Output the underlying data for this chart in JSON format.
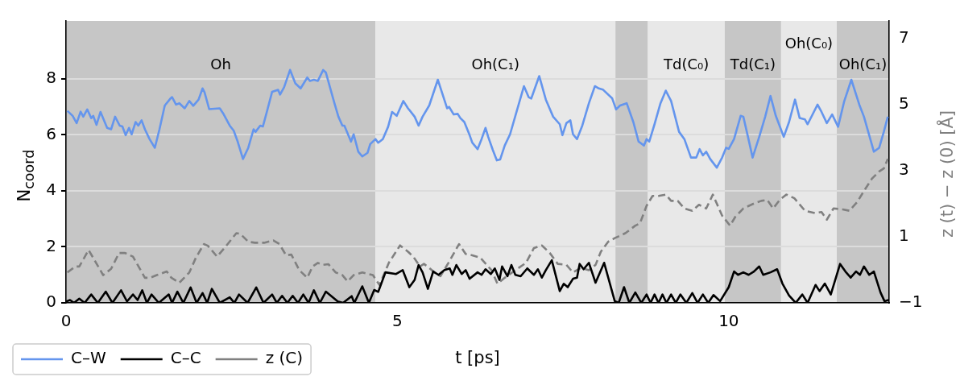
{
  "chart_data": {
    "type": "line",
    "xlabel": "t [ps]",
    "ylabel": "N$_{coord}$",
    "y2label": "z (t) − z (0) [Å]",
    "xlim": [
      0,
      12.42
    ],
    "xticks": [
      0,
      5,
      10
    ],
    "ylim": [
      0,
      10.07
    ],
    "yticks": [
      0,
      2,
      4,
      6,
      8
    ],
    "y2lim": [
      -1,
      7.54
    ],
    "y2ticks": [
      -1,
      1,
      3,
      5,
      7
    ],
    "grid": "y",
    "legend": "bottom left",
    "bands": [
      {
        "axis": "x",
        "from": 0,
        "to": 4.67,
        "label": "Oh",
        "color": "#c6c6c6"
      },
      {
        "axis": "x",
        "from": 4.67,
        "to": 8.29,
        "label": "Oh(C₁)",
        "color": "#e8e8e8"
      },
      {
        "axis": "x",
        "from": 8.29,
        "to": 8.78,
        "label": null,
        "color": "#c6c6c6"
      },
      {
        "axis": "x",
        "from": 8.78,
        "to": 9.94,
        "label": "Td(C₀)",
        "color": "#e8e8e8"
      },
      {
        "axis": "x",
        "from": 9.94,
        "to": 10.79,
        "label": "Td(C₁)",
        "color": "#c6c6c6"
      },
      {
        "axis": "x",
        "from": 10.79,
        "to": 11.63,
        "label": "Oh(C₀)",
        "color": "#e8e8e8"
      },
      {
        "axis": "x",
        "from": 11.63,
        "to": 12.42,
        "label": "Oh(C₁)",
        "color": "#c6c6c6"
      }
    ],
    "series": [
      {
        "name": "C–W",
        "color": "#6495ed",
        "line_style": "solid",
        "x": [
          0.02,
          0.1,
          0.16,
          0.22,
          0.26,
          0.32,
          0.38,
          0.41,
          0.46,
          0.52,
          0.62,
          0.68,
          0.74,
          0.81,
          0.85,
          0.9,
          0.95,
          0.99,
          1.05,
          1.09,
          1.14,
          1.19,
          1.26,
          1.34,
          1.41,
          1.49,
          1.58,
          1.6,
          1.66,
          1.71,
          1.79,
          1.86,
          1.92,
          2.0,
          2.06,
          2.09,
          2.16,
          2.32,
          2.37,
          2.47,
          2.53,
          2.59,
          2.67,
          2.75,
          2.83,
          2.86,
          2.93,
          2.97,
          3.03,
          3.11,
          3.2,
          3.23,
          3.29,
          3.38,
          3.46,
          3.54,
          3.64,
          3.68,
          3.74,
          3.8,
          3.88,
          3.92,
          4.05,
          4.11,
          4.17,
          4.2,
          4.3,
          4.34,
          4.41,
          4.47,
          4.55,
          4.59,
          4.67,
          4.71,
          4.78,
          4.86,
          4.92,
          4.99,
          5.09,
          5.16,
          5.26,
          5.32,
          5.38,
          5.48,
          5.61,
          5.75,
          5.78,
          5.85,
          5.91,
          5.95,
          6.01,
          6.09,
          6.13,
          6.21,
          6.27,
          6.33,
          6.37,
          6.44,
          6.5,
          6.55,
          6.62,
          6.7,
          6.78,
          6.91,
          6.98,
          7.02,
          7.14,
          7.24,
          7.35,
          7.45,
          7.49,
          7.55,
          7.61,
          7.65,
          7.71,
          7.79,
          7.89,
          7.98,
          8.04,
          8.1,
          8.24,
          8.3,
          8.36,
          8.46,
          8.56,
          8.64,
          8.72,
          8.76,
          8.8,
          8.88,
          8.97,
          9.05,
          9.13,
          9.25,
          9.33,
          9.43,
          9.51,
          9.56,
          9.61,
          9.66,
          9.72,
          9.82,
          9.9,
          9.96,
          10.0,
          10.08,
          10.18,
          10.22,
          10.29,
          10.36,
          10.46,
          10.55,
          10.63,
          10.71,
          10.83,
          10.91,
          11.0,
          11.07,
          11.15,
          11.19,
          11.34,
          11.4,
          11.48,
          11.56,
          11.65,
          11.74,
          11.85,
          11.97,
          12.04,
          12.19,
          12.27,
          12.34,
          12.4
        ],
        "values": [
          6.86,
          6.68,
          6.42,
          6.83,
          6.65,
          6.91,
          6.6,
          6.68,
          6.36,
          6.82,
          6.25,
          6.2,
          6.65,
          6.33,
          6.3,
          5.99,
          6.25,
          6.02,
          6.46,
          6.33,
          6.52,
          6.2,
          5.85,
          5.54,
          6.2,
          7.05,
          7.31,
          7.35,
          7.08,
          7.13,
          6.95,
          7.21,
          7.04,
          7.26,
          7.66,
          7.52,
          6.92,
          6.95,
          6.77,
          6.33,
          6.15,
          5.76,
          5.14,
          5.54,
          6.2,
          6.11,
          6.33,
          6.3,
          6.82,
          7.54,
          7.61,
          7.44,
          7.7,
          8.32,
          7.84,
          7.66,
          8.05,
          7.93,
          7.97,
          7.93,
          8.32,
          8.23,
          7.13,
          6.65,
          6.33,
          6.33,
          5.76,
          6.02,
          5.4,
          5.23,
          5.36,
          5.67,
          5.85,
          5.72,
          5.85,
          6.29,
          6.82,
          6.68,
          7.21,
          6.95,
          6.65,
          6.33,
          6.65,
          7.05,
          7.97,
          6.95,
          7.0,
          6.73,
          6.75,
          6.6,
          6.46,
          5.99,
          5.72,
          5.49,
          5.85,
          6.25,
          5.93,
          5.46,
          5.09,
          5.12,
          5.62,
          6.02,
          6.68,
          7.74,
          7.35,
          7.3,
          8.1,
          7.26,
          6.65,
          6.38,
          5.99,
          6.42,
          6.52,
          6.02,
          5.85,
          6.33,
          7.13,
          7.74,
          7.66,
          7.62,
          7.31,
          6.91,
          7.05,
          7.13,
          6.46,
          5.76,
          5.62,
          5.85,
          5.76,
          6.38,
          7.13,
          7.58,
          7.21,
          6.11,
          5.85,
          5.19,
          5.19,
          5.49,
          5.27,
          5.4,
          5.14,
          4.83,
          5.19,
          5.54,
          5.5,
          5.85,
          6.68,
          6.65,
          5.93,
          5.19,
          5.93,
          6.65,
          7.39,
          6.68,
          5.93,
          6.46,
          7.26,
          6.6,
          6.55,
          6.38,
          7.08,
          6.82,
          6.42,
          6.73,
          6.29,
          7.18,
          7.97,
          7.08,
          6.65,
          5.4,
          5.54,
          6.11,
          6.65
        ]
      },
      {
        "name": "C–C",
        "color": "#000000",
        "line_style": "solid",
        "x": [
          0,
          0.06,
          0.12,
          0.2,
          0.28,
          0.38,
          0.48,
          0.6,
          0.7,
          0.83,
          0.92,
          1.01,
          1.08,
          1.15,
          1.22,
          1.29,
          1.4,
          1.55,
          1.6,
          1.68,
          1.77,
          1.88,
          1.97,
          2.06,
          2.13,
          2.2,
          2.32,
          2.47,
          2.54,
          2.61,
          2.74,
          2.87,
          2.98,
          3.11,
          3.18,
          3.26,
          3.34,
          3.42,
          3.5,
          3.58,
          3.66,
          3.74,
          3.83,
          3.92,
          4.1,
          4.18,
          4.31,
          4.35,
          4.47,
          4.57,
          4.65,
          4.71,
          4.82,
          4.98,
          5.08,
          5.18,
          5.26,
          5.32,
          5.38,
          5.46,
          5.54,
          5.62,
          5.71,
          5.79,
          5.83,
          5.89,
          5.97,
          6.03,
          6.09,
          6.21,
          6.27,
          6.33,
          6.41,
          6.47,
          6.54,
          6.58,
          6.66,
          6.72,
          6.78,
          6.86,
          6.96,
          7.06,
          7.12,
          7.18,
          7.24,
          7.33,
          7.45,
          7.51,
          7.57,
          7.65,
          7.71,
          7.75,
          7.81,
          7.89,
          7.99,
          8.12,
          8.28,
          8.34,
          8.42,
          8.5,
          8.59,
          8.68,
          8.76,
          8.82,
          8.88,
          8.94,
          9.0,
          9.06,
          9.13,
          9.2,
          9.27,
          9.36,
          9.45,
          9.53,
          9.61,
          9.69,
          9.77,
          9.87,
          10.0,
          10.08,
          10.14,
          10.22,
          10.3,
          10.38,
          10.46,
          10.52,
          10.63,
          10.73,
          10.81,
          10.91,
          11.01,
          11.11,
          11.19,
          11.31,
          11.37,
          11.45,
          11.54,
          11.68,
          11.76,
          11.84,
          11.92,
          11.98,
          12.04,
          12.12,
          12.19,
          12.29,
          12.35,
          12.41
        ],
        "values": [
          0.05,
          0.1,
          0,
          0.15,
          0,
          0.3,
          0,
          0.4,
          0,
          0.45,
          0.05,
          0.3,
          0.1,
          0.45,
          0,
          0.3,
          0,
          0.3,
          0,
          0.4,
          0,
          0.55,
          0,
          0.35,
          0,
          0.5,
          0,
          0.2,
          0,
          0.3,
          0,
          0.55,
          0,
          0.3,
          0,
          0.25,
          0,
          0.25,
          0,
          0.3,
          0,
          0.45,
          0,
          0.4,
          0.05,
          0,
          0.24,
          0,
          0.59,
          0,
          0.46,
          0.39,
          1.09,
          1.03,
          1.17,
          0.56,
          0.82,
          1.35,
          1.09,
          0.5,
          1.12,
          1.0,
          1.17,
          1.23,
          1.0,
          1.35,
          1.03,
          1.17,
          0.86,
          1.09,
          1.0,
          1.2,
          1.03,
          1.23,
          0.82,
          1.3,
          0.95,
          1.35,
          1.0,
          0.95,
          1.23,
          1.0,
          1.2,
          0.9,
          1.17,
          1.52,
          0.42,
          0.68,
          0.56,
          0.86,
          0.9,
          1.39,
          1.2,
          1.43,
          0.72,
          1.43,
          0.06,
          0,
          0.56,
          0,
          0.37,
          0,
          0.3,
          0,
          0.3,
          0,
          0.3,
          0,
          0.3,
          0,
          0.3,
          0,
          0.35,
          0,
          0.3,
          0,
          0.28,
          0.06,
          0.56,
          1.12,
          1.0,
          1.09,
          1.0,
          1.12,
          1.3,
          1.0,
          1.09,
          1.2,
          0.69,
          0.26,
          0,
          0.3,
          0,
          0.64,
          0.42,
          0.69,
          0.3,
          1.39,
          1.12,
          0.9,
          1.12,
          1.0,
          1.3,
          1.0,
          1.12,
          0.37,
          0.06,
          0.1
        ]
      },
      {
        "name": "z (C)",
        "color": "#808080",
        "line_style": "dashed",
        "axis": "y2",
        "x": [
          0.02,
          0.14,
          0.2,
          0.34,
          0.42,
          0.56,
          0.68,
          0.8,
          0.89,
          1.01,
          1.19,
          1.27,
          1.37,
          1.52,
          1.59,
          1.71,
          1.86,
          1.96,
          2.08,
          2.14,
          2.28,
          2.41,
          2.57,
          2.63,
          2.75,
          2.85,
          2.99,
          3.13,
          3.22,
          3.32,
          3.4,
          3.52,
          3.64,
          3.72,
          3.8,
          3.88,
          3.96,
          4.07,
          4.17,
          4.25,
          4.34,
          4.47,
          4.63,
          4.73,
          4.87,
          5.04,
          5.16,
          5.24,
          5.34,
          5.4,
          5.48,
          5.56,
          5.65,
          5.77,
          5.93,
          6.03,
          6.13,
          6.25,
          6.42,
          6.51,
          6.62,
          6.78,
          6.94,
          7.06,
          7.18,
          7.3,
          7.42,
          7.55,
          7.65,
          7.77,
          7.89,
          7.99,
          8.07,
          8.18,
          8.28,
          8.44,
          8.59,
          8.66,
          8.76,
          8.85,
          8.94,
          9.05,
          9.13,
          9.23,
          9.33,
          9.45,
          9.55,
          9.66,
          9.76,
          9.9,
          10.02,
          10.1,
          10.22,
          10.38,
          10.49,
          10.58,
          10.67,
          10.77,
          10.87,
          10.99,
          11.15,
          11.3,
          11.4,
          11.48,
          11.58,
          11.72,
          11.82,
          11.94,
          12.04,
          12.16,
          12.27,
          12.34,
          12.4
        ],
        "values": [
          -0.08,
          0.1,
          0.1,
          0.6,
          0.33,
          -0.16,
          0.03,
          0.51,
          0.51,
          0.4,
          -0.24,
          -0.24,
          -0.16,
          -0.05,
          -0.24,
          -0.39,
          -0.08,
          0.37,
          0.78,
          0.73,
          0.4,
          0.71,
          1.11,
          1.09,
          0.85,
          0.82,
          0.82,
          0.89,
          0.78,
          0.44,
          0.46,
          -0.01,
          -0.24,
          0.1,
          0.21,
          0.15,
          0.17,
          -0.08,
          -0.16,
          -0.35,
          -0.16,
          -0.08,
          -0.16,
          -0.46,
          0.21,
          0.74,
          0.55,
          0.4,
          0.1,
          0.18,
          0.06,
          -0.08,
          -0.19,
          0.21,
          0.78,
          0.48,
          0.44,
          0.37,
          -0.01,
          -0.42,
          -0.24,
          -0.01,
          0.21,
          0.66,
          0.74,
          0.51,
          0.18,
          0.15,
          -0.08,
          0.06,
          -0.01,
          0.15,
          0.55,
          0.85,
          0.96,
          1.11,
          1.34,
          1.41,
          1.94,
          2.24,
          2.24,
          2.28,
          2.09,
          2.09,
          1.86,
          1.79,
          1.97,
          1.86,
          2.28,
          1.64,
          1.34,
          1.61,
          1.86,
          2.01,
          2.09,
          2.12,
          1.86,
          2.12,
          2.28,
          2.17,
          1.79,
          1.72,
          1.75,
          1.52,
          1.86,
          1.83,
          1.79,
          2.06,
          2.39,
          2.76,
          2.98,
          3.07,
          3.36
        ]
      }
    ]
  }
}
